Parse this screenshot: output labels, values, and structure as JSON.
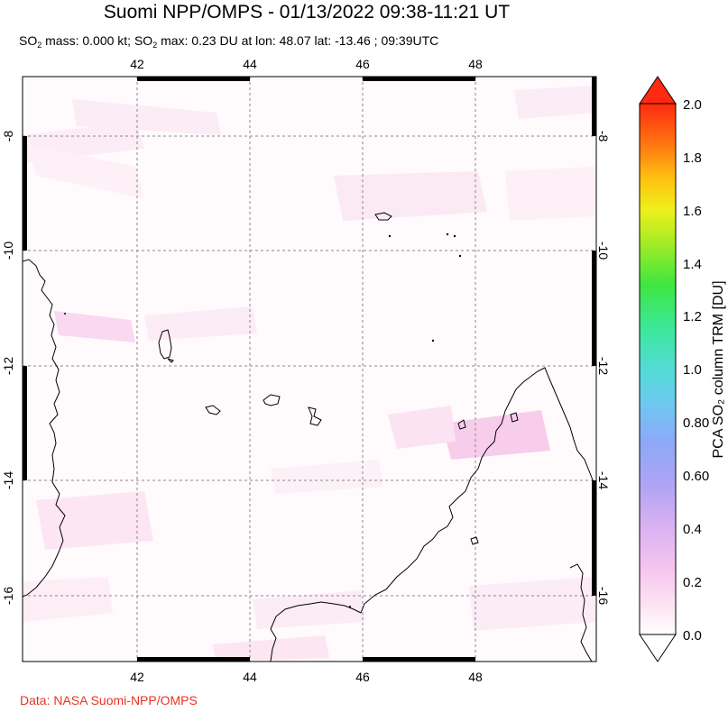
{
  "header": {
    "title": "Suomi NPP/OMPS - 01/13/2022 09:38-11:21 UT",
    "subtitle_prefix": "SO",
    "subtitle_sub1": "2",
    "subtitle_mid": " mass: 0.000 kt; SO",
    "subtitle_sub2": "2",
    "subtitle_rest": " max: 0.23 DU at lon: 48.07 lat: -13.46 ; 09:39UTC"
  },
  "map": {
    "lon_ticks": [
      "42",
      "44",
      "46",
      "48"
    ],
    "lat_ticks": [
      "-8",
      "-10",
      "-12",
      "-14",
      "-16"
    ],
    "lon_range": [
      40,
      50
    ],
    "lat_range": [
      -17.1,
      -6.9
    ],
    "gridlines": "dashed",
    "colors": {
      "border": "#000000",
      "grid": "#888888",
      "so2_low_tint": "#fde6f3",
      "coastline": "#000000"
    }
  },
  "colorbar": {
    "title": "PCA SO₂ column TRM [DU]",
    "ticks": [
      "2.0",
      "1.8",
      "1.6",
      "1.4",
      "1.2",
      "1.0",
      "0.80",
      "0.60",
      "0.4",
      "0.2",
      "0.0"
    ],
    "range": [
      0.0,
      2.0
    ],
    "colors": {
      "top_arrow": "#ff2200",
      "bottom_arrow": "#ffffff"
    }
  },
  "footer": {
    "credit": "Data: NASA Suomi-NPP/OMPS"
  }
}
